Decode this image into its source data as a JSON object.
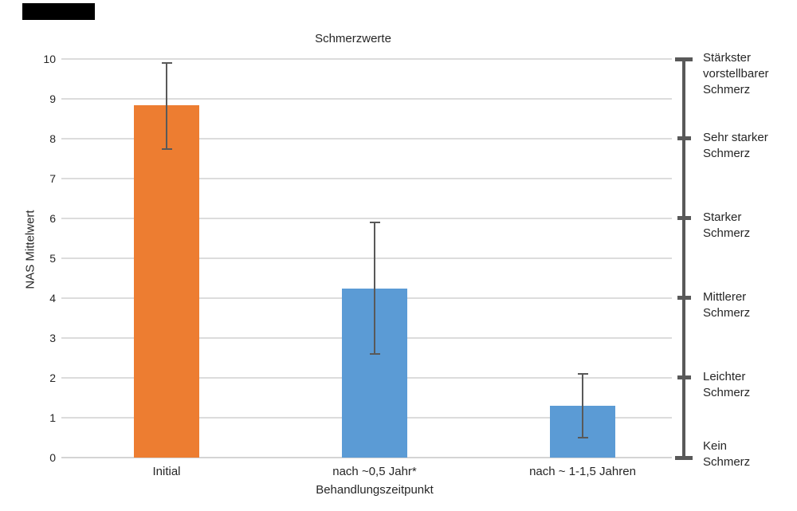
{
  "redaction": {
    "present": true
  },
  "chart_data": {
    "type": "bar",
    "title": "Schmerzwerte",
    "xlabel": "Behandlungszeitpunkt",
    "ylabel": "NAS Mittelwert",
    "ylim": [
      0,
      10
    ],
    "yticks": [
      0,
      1,
      2,
      3,
      4,
      5,
      6,
      7,
      8,
      9,
      10
    ],
    "grid": true,
    "categories": [
      "Initial",
      "nach ~0,5 Jahr*",
      "nach ~ 1-1,5 Jahren"
    ],
    "series": [
      {
        "name": "NAS Mittelwert",
        "values": [
          8.85,
          4.25,
          1.3
        ],
        "error_low": [
          7.75,
          2.6,
          0.5
        ],
        "error_high": [
          9.9,
          5.9,
          2.1
        ]
      }
    ],
    "bar_colors": [
      "#ED7D31",
      "#5B9BD5",
      "#5B9BD5"
    ],
    "gridline_color": "#DCDCDC",
    "error_bar_color": "#595959",
    "right_scale": {
      "line_color": "#595959",
      "labels": [
        {
          "value": 10,
          "lines": [
            "Stärkster",
            "vorstellbarer",
            "Schmerz"
          ]
        },
        {
          "value": 8,
          "lines": [
            "Sehr starker",
            "Schmerz"
          ]
        },
        {
          "value": 6,
          "lines": [
            "Starker",
            "Schmerz"
          ]
        },
        {
          "value": 4,
          "lines": [
            "Mittlerer",
            "Schmerz"
          ]
        },
        {
          "value": 2,
          "lines": [
            "Leichter",
            "Schmerz"
          ]
        },
        {
          "value": 0,
          "lines": [
            "Kein",
            "Schmerz"
          ]
        }
      ]
    }
  }
}
